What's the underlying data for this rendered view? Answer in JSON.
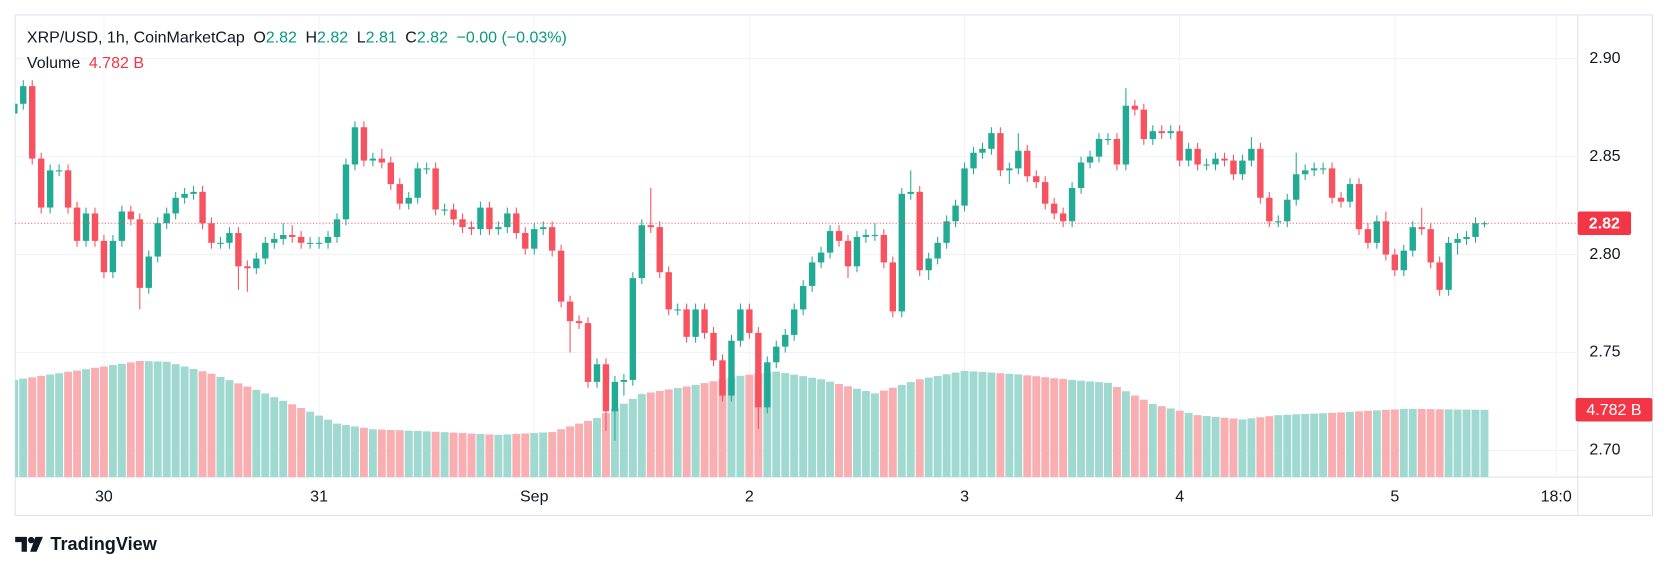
{
  "chart_data": {
    "type": "candlestick",
    "header": {
      "symbol": "XRP/USD, 1h, CoinMarketCap",
      "ohlc": [
        {
          "key": "O",
          "value": "2.82"
        },
        {
          "key": "H",
          "value": "2.82"
        },
        {
          "key": "L",
          "value": "2.81"
        },
        {
          "key": "C",
          "value": "2.82"
        }
      ],
      "change": "−0.00 (−0.03%)",
      "volume_title": "Volume",
      "volume_value": "4.782 B"
    },
    "last_price_label": "2.82",
    "up_color": "#22ab94",
    "down_color": "#f7525f",
    "volume_up_color": "#9fd9cf",
    "volume_down_color": "#f9aeb2",
    "grid": true,
    "x": [
      -10,
      -9,
      -8,
      -7,
      -6,
      -5,
      -4,
      -3,
      -2,
      -1,
      0,
      1,
      2,
      3,
      4,
      5,
      6,
      7,
      8,
      9,
      10,
      11,
      12,
      13,
      14,
      15,
      16,
      17,
      18,
      19,
      20,
      21,
      22,
      23,
      24,
      25,
      26,
      27,
      28,
      29,
      30,
      31,
      32,
      33,
      34,
      35,
      36,
      37,
      38,
      39,
      40,
      41,
      42,
      43,
      44,
      45,
      46,
      47,
      48,
      49,
      50,
      51,
      52,
      53,
      54,
      55,
      56,
      57,
      58,
      59,
      60,
      61,
      62,
      63,
      64,
      65,
      66,
      67,
      68,
      69,
      70,
      71,
      72,
      73,
      74,
      75,
      76,
      77,
      78,
      79,
      80,
      81,
      82,
      83,
      84,
      85,
      86,
      87,
      88,
      89,
      90,
      91,
      92,
      93,
      94,
      95,
      96,
      97,
      98,
      99,
      100,
      101,
      102,
      103,
      104,
      105,
      106,
      107,
      108,
      109,
      110,
      111,
      112,
      113,
      114,
      115,
      116,
      117,
      118,
      119,
      120,
      121,
      122,
      123,
      124,
      125,
      126,
      127,
      128,
      129,
      130,
      131,
      132,
      133,
      134,
      135,
      136,
      137,
      138,
      139,
      140,
      141,
      142,
      143,
      144,
      145,
      146,
      147,
      148,
      149,
      150,
      151,
      152,
      153,
      154
    ],
    "open": [
      2.872,
      2.877,
      2.886,
      2.849,
      2.824,
      2.843,
      2.843,
      2.824,
      2.807,
      2.821,
      2.807,
      2.791,
      2.807,
      2.822,
      2.818,
      2.783,
      2.799,
      2.816,
      2.821,
      2.829,
      2.831,
      2.832,
      2.816,
      2.806,
      2.806,
      2.811,
      2.794,
      2.793,
      2.798,
      2.806,
      2.808,
      2.81,
      2.809,
      2.806,
      2.806,
      2.806,
      2.809,
      2.818,
      2.846,
      2.865,
      2.848,
      2.849,
      2.847,
      2.836,
      2.826,
      2.829,
      2.844,
      2.844,
      2.823,
      2.823,
      2.818,
      2.814,
      2.813,
      2.824,
      2.813,
      2.814,
      2.821,
      2.811,
      2.803,
      2.813,
      2.814,
      2.802,
      2.776,
      2.766,
      2.765,
      2.735,
      2.744,
      2.72,
      2.735,
      2.736,
      2.788,
      2.815,
      2.814,
      2.791,
      2.772,
      2.772,
      2.758,
      2.772,
      2.76,
      2.746,
      2.728,
      2.756,
      2.772,
      2.76,
      2.722,
      2.745,
      2.753,
      2.759,
      2.772,
      2.784,
      2.796,
      2.801,
      2.812,
      2.807,
      2.794,
      2.809,
      2.81,
      2.81,
      2.796,
      2.771,
      2.831,
      2.832,
      2.792,
      2.798,
      2.806,
      2.817,
      2.825,
      2.844,
      2.852,
      2.854,
      2.862,
      2.843,
      2.844,
      2.853,
      2.84,
      2.837,
      2.826,
      2.821,
      2.817,
      2.834,
      2.847,
      2.85,
      2.859,
      2.859,
      2.846,
      2.876,
      2.874,
      2.859,
      2.863,
      2.862,
      2.863,
      2.848,
      2.854,
      2.846,
      2.846,
      2.849,
      2.848,
      2.841,
      2.848,
      2.854,
      2.829,
      2.817,
      2.817,
      2.828,
      2.841,
      2.843,
      2.844,
      2.844,
      2.829,
      2.827,
      2.836,
      2.813,
      2.806,
      2.817,
      2.8,
      2.792,
      2.802,
      2.814,
      2.813,
      2.796,
      2.782,
      2.806,
      2.808,
      2.809,
      2.816
    ],
    "high": [
      2.88,
      2.889,
      2.889,
      2.852,
      2.846,
      2.846,
      2.846,
      2.827,
      2.824,
      2.824,
      2.81,
      2.81,
      2.825,
      2.825,
      2.821,
      2.802,
      2.819,
      2.824,
      2.832,
      2.834,
      2.835,
      2.835,
      2.819,
      2.809,
      2.814,
      2.814,
      2.797,
      2.801,
      2.809,
      2.811,
      2.816,
      2.815,
      2.812,
      2.809,
      2.809,
      2.812,
      2.821,
      2.849,
      2.868,
      2.868,
      2.852,
      2.854,
      2.85,
      2.839,
      2.832,
      2.847,
      2.847,
      2.847,
      2.826,
      2.826,
      2.821,
      2.817,
      2.827,
      2.827,
      2.817,
      2.824,
      2.824,
      2.814,
      2.816,
      2.817,
      2.817,
      2.805,
      2.779,
      2.769,
      2.768,
      2.747,
      2.747,
      2.738,
      2.739,
      2.791,
      2.818,
      2.834,
      2.817,
      2.794,
      2.775,
      2.775,
      2.775,
      2.775,
      2.763,
      2.749,
      2.759,
      2.775,
      2.775,
      2.763,
      2.748,
      2.756,
      2.762,
      2.775,
      2.787,
      2.799,
      2.804,
      2.815,
      2.815,
      2.81,
      2.812,
      2.813,
      2.816,
      2.813,
      2.799,
      2.834,
      2.843,
      2.835,
      2.801,
      2.809,
      2.82,
      2.828,
      2.847,
      2.855,
      2.857,
      2.865,
      2.865,
      2.847,
      2.862,
      2.856,
      2.843,
      2.84,
      2.829,
      2.824,
      2.837,
      2.85,
      2.853,
      2.862,
      2.862,
      2.862,
      2.885,
      2.879,
      2.877,
      2.866,
      2.866,
      2.866,
      2.866,
      2.857,
      2.857,
      2.849,
      2.852,
      2.852,
      2.851,
      2.851,
      2.86,
      2.857,
      2.832,
      2.82,
      2.831,
      2.852,
      2.846,
      2.847,
      2.847,
      2.847,
      2.832,
      2.839,
      2.839,
      2.816,
      2.82,
      2.822,
      2.803,
      2.805,
      2.817,
      2.824,
      2.816,
      2.799,
      2.809,
      2.811,
      2.812,
      2.819,
      2.817
    ],
    "low": [
      2.869,
      2.874,
      2.846,
      2.821,
      2.821,
      2.84,
      2.821,
      2.804,
      2.804,
      2.804,
      2.788,
      2.788,
      2.804,
      2.815,
      2.772,
      2.78,
      2.796,
      2.813,
      2.818,
      2.826,
      2.828,
      2.813,
      2.803,
      2.803,
      2.803,
      2.782,
      2.781,
      2.79,
      2.795,
      2.803,
      2.805,
      2.806,
      2.803,
      2.803,
      2.803,
      2.803,
      2.806,
      2.815,
      2.843,
      2.845,
      2.845,
      2.844,
      2.833,
      2.823,
      2.823,
      2.826,
      2.841,
      2.82,
      2.82,
      2.815,
      2.811,
      2.81,
      2.81,
      2.81,
      2.81,
      2.811,
      2.808,
      2.8,
      2.8,
      2.81,
      2.799,
      2.773,
      2.75,
      2.762,
      2.732,
      2.732,
      2.71,
      2.705,
      2.728,
      2.733,
      2.785,
      2.811,
      2.788,
      2.769,
      2.769,
      2.755,
      2.755,
      2.757,
      2.743,
      2.725,
      2.725,
      2.753,
      2.757,
      2.711,
      2.719,
      2.742,
      2.75,
      2.756,
      2.769,
      2.781,
      2.793,
      2.798,
      2.804,
      2.788,
      2.791,
      2.806,
      2.807,
      2.793,
      2.768,
      2.768,
      2.828,
      2.789,
      2.787,
      2.795,
      2.803,
      2.814,
      2.822,
      2.841,
      2.849,
      2.851,
      2.84,
      2.836,
      2.841,
      2.837,
      2.834,
      2.823,
      2.818,
      2.814,
      2.814,
      2.831,
      2.844,
      2.847,
      2.856,
      2.843,
      2.843,
      2.871,
      2.856,
      2.856,
      2.859,
      2.859,
      2.845,
      2.845,
      2.843,
      2.843,
      2.843,
      2.845,
      2.838,
      2.838,
      2.845,
      2.826,
      2.814,
      2.814,
      2.814,
      2.825,
      2.838,
      2.84,
      2.841,
      2.826,
      2.824,
      2.824,
      2.81,
      2.803,
      2.803,
      2.797,
      2.789,
      2.789,
      2.799,
      2.81,
      2.793,
      2.779,
      2.779,
      2.8,
      2.805,
      2.806,
      2.814
    ],
    "close": [
      2.877,
      2.886,
      2.849,
      2.824,
      2.843,
      2.843,
      2.824,
      2.807,
      2.821,
      2.807,
      2.791,
      2.807,
      2.822,
      2.818,
      2.783,
      2.799,
      2.816,
      2.821,
      2.829,
      2.831,
      2.832,
      2.816,
      2.806,
      2.806,
      2.811,
      2.794,
      2.793,
      2.798,
      2.806,
      2.808,
      2.81,
      2.809,
      2.806,
      2.806,
      2.806,
      2.809,
      2.818,
      2.846,
      2.865,
      2.848,
      2.849,
      2.847,
      2.836,
      2.826,
      2.829,
      2.844,
      2.844,
      2.823,
      2.823,
      2.818,
      2.814,
      2.813,
      2.824,
      2.813,
      2.814,
      2.821,
      2.811,
      2.803,
      2.813,
      2.814,
      2.802,
      2.776,
      2.766,
      2.765,
      2.735,
      2.744,
      2.72,
      2.735,
      2.736,
      2.788,
      2.815,
      2.814,
      2.791,
      2.772,
      2.772,
      2.758,
      2.772,
      2.76,
      2.746,
      2.728,
      2.756,
      2.772,
      2.76,
      2.722,
      2.745,
      2.753,
      2.759,
      2.772,
      2.784,
      2.796,
      2.801,
      2.812,
      2.807,
      2.794,
      2.809,
      2.81,
      2.81,
      2.796,
      2.771,
      2.831,
      2.832,
      2.792,
      2.798,
      2.806,
      2.817,
      2.825,
      2.844,
      2.852,
      2.854,
      2.862,
      2.843,
      2.844,
      2.853,
      2.84,
      2.837,
      2.826,
      2.821,
      2.817,
      2.834,
      2.847,
      2.85,
      2.859,
      2.859,
      2.846,
      2.876,
      2.874,
      2.859,
      2.863,
      2.862,
      2.863,
      2.848,
      2.854,
      2.846,
      2.846,
      2.849,
      2.848,
      2.841,
      2.848,
      2.854,
      2.829,
      2.817,
      2.817,
      2.828,
      2.841,
      2.843,
      2.844,
      2.844,
      2.829,
      2.827,
      2.836,
      2.813,
      2.806,
      2.817,
      2.8,
      2.792,
      2.802,
      2.814,
      2.813,
      2.796,
      2.782,
      2.806,
      2.808,
      2.809,
      2.816,
      2.816
    ],
    "volume": [
      6.9,
      7.0,
      7.09,
      7.19,
      7.29,
      7.38,
      7.48,
      7.57,
      7.67,
      7.77,
      7.86,
      7.96,
      8.05,
      8.15,
      8.25,
      8.24,
      8.22,
      8.2,
      8.03,
      7.86,
      7.69,
      7.52,
      7.35,
      7.12,
      6.89,
      6.66,
      6.43,
      6.2,
      5.94,
      5.68,
      5.42,
      5.17,
      4.91,
      4.65,
      4.37,
      4.08,
      3.8,
      3.7,
      3.6,
      3.5,
      3.4,
      3.38,
      3.35,
      3.33,
      3.3,
      3.28,
      3.25,
      3.22,
      3.19,
      3.16,
      3.13,
      3.09,
      3.06,
      3.03,
      3.0,
      3.03,
      3.07,
      3.1,
      3.13,
      3.17,
      3.2,
      3.4,
      3.6,
      3.8,
      4.0,
      4.2,
      4.54,
      4.88,
      5.22,
      5.56,
      5.9,
      6.01,
      6.12,
      6.23,
      6.33,
      6.44,
      6.55,
      6.68,
      6.81,
      6.94,
      7.07,
      7.2,
      7.28,
      7.35,
      7.43,
      7.5,
      7.39,
      7.28,
      7.17,
      7.06,
      6.95,
      6.78,
      6.62,
      6.45,
      6.28,
      6.12,
      5.95,
      6.15,
      6.35,
      6.55,
      6.75,
      6.95,
      7.07,
      7.19,
      7.31,
      7.43,
      7.55,
      7.51,
      7.47,
      7.43,
      7.38,
      7.34,
      7.3,
      7.23,
      7.17,
      7.1,
      7.03,
      6.97,
      6.9,
      6.85,
      6.8,
      6.75,
      6.7,
      6.4,
      6.1,
      5.8,
      5.5,
      5.2,
      5.04,
      4.88,
      4.72,
      4.56,
      4.4,
      4.34,
      4.28,
      4.22,
      4.16,
      4.1,
      4.18,
      4.25,
      4.33,
      4.4,
      4.43,
      4.46,
      4.49,
      4.51,
      4.54,
      4.57,
      4.6,
      4.64,
      4.67,
      4.71,
      4.74,
      4.78,
      4.81,
      4.85,
      4.84,
      4.84,
      4.83,
      4.82,
      4.81,
      4.8,
      4.8,
      4.79,
      4.782
    ],
    "volume_value_label": "4.782 B",
    "xlim": [
      -9.9,
      164.4
    ],
    "xticks": [
      {
        "value": 0,
        "label": "30"
      },
      {
        "value": 24,
        "label": "31"
      },
      {
        "value": 48,
        "label": "Sep"
      },
      {
        "value": 72,
        "label": "2"
      },
      {
        "value": 96,
        "label": "3"
      },
      {
        "value": 120,
        "label": "4"
      },
      {
        "value": 144,
        "label": "5"
      },
      {
        "value": 162,
        "label": "18:0"
      }
    ],
    "ylim": [
      2.6864,
      2.9218
    ],
    "yticks": [
      {
        "value": 2.7,
        "label": "2.70"
      },
      {
        "value": 2.75,
        "label": "2.75"
      },
      {
        "value": 2.8,
        "label": "2.80"
      },
      {
        "value": 2.85,
        "label": "2.85"
      },
      {
        "value": 2.9,
        "label": "2.90"
      }
    ],
    "vlim": [
      0,
      11
    ],
    "footer": "TradingView"
  }
}
